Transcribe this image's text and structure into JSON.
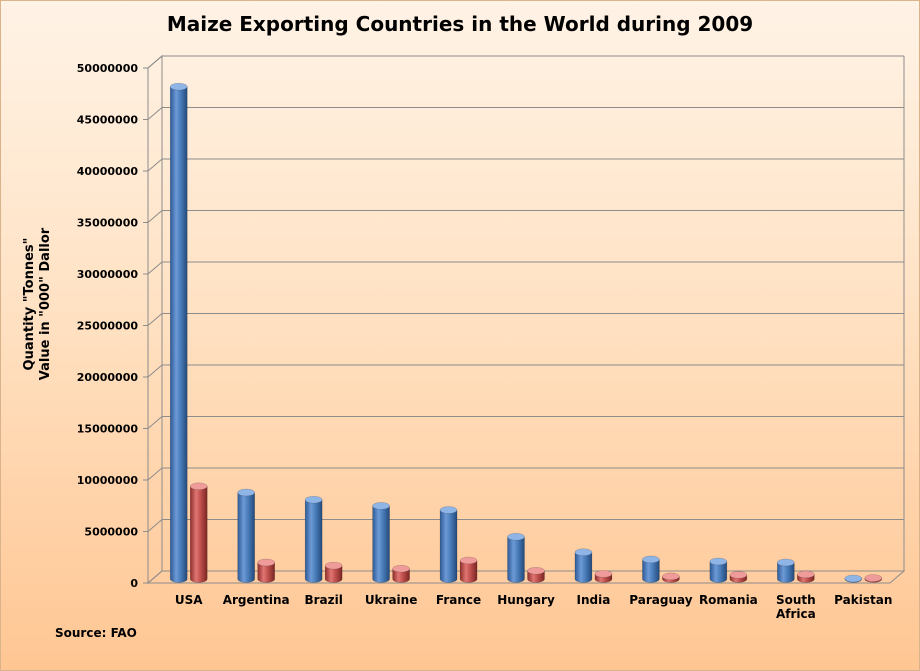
{
  "chart_data": {
    "type": "bar",
    "title": "Maize Exporting Countries in the World during 2009",
    "ylabel_lines": [
      "Quantity \"Tonnes\"",
      "Value in \"000\" Dallor"
    ],
    "source": "Source: FAO",
    "categories": [
      "USA",
      "Argentina",
      "Brazil",
      "Ukraine",
      "France",
      "Hungary",
      "India",
      "Paraguay",
      "Romania",
      "South Africa",
      "Pakistan"
    ],
    "category_lines": [
      [
        "USA"
      ],
      [
        "Argentina"
      ],
      [
        "Brazil"
      ],
      [
        "Ukraine"
      ],
      [
        "France"
      ],
      [
        "Hungary"
      ],
      [
        "India"
      ],
      [
        "Paraguay"
      ],
      [
        "Romania"
      ],
      [
        "South",
        "Africa"
      ],
      [
        "Pakistan"
      ]
    ],
    "series": [
      {
        "values": [
          47800000,
          8400000,
          7700000,
          7100000,
          6700000,
          4100000,
          2600000,
          1900000,
          1700000,
          1600000,
          50000
        ],
        "color": "#4a7ebb"
      },
      {
        "values": [
          9000000,
          1600000,
          1300000,
          1000000,
          1800000,
          800000,
          500000,
          250000,
          400000,
          450000,
          100000
        ],
        "color": "#c0504d"
      }
    ],
    "ylim": [
      0,
      50000000
    ],
    "yticks": [
      "0",
      "5000000",
      "10000000",
      "15000000",
      "20000000",
      "25000000",
      "30000000",
      "35000000",
      "40000000",
      "45000000",
      "50000000"
    ],
    "grid": true,
    "legend": "none"
  }
}
